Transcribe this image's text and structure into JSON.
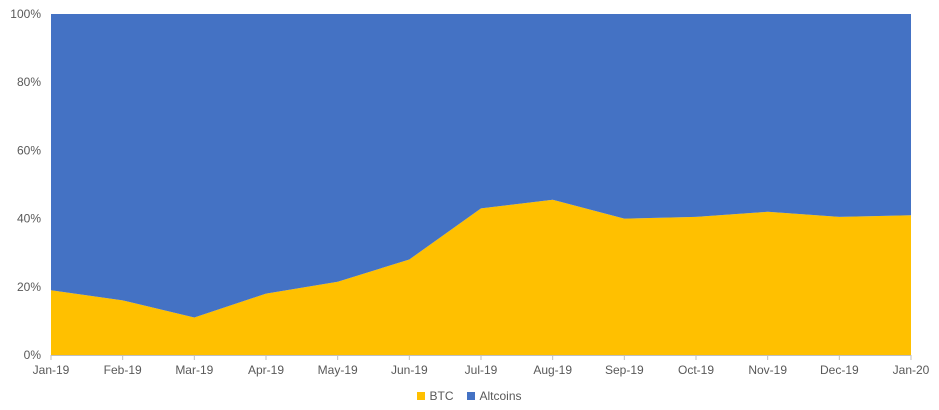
{
  "chart_data": {
    "type": "area",
    "stacked_percent": true,
    "categories": [
      "Jan-19",
      "Feb-19",
      "Mar-19",
      "Apr-19",
      "May-19",
      "Jun-19",
      "Jul-19",
      "Aug-19",
      "Sep-19",
      "Oct-19",
      "Nov-19",
      "Dec-19",
      "Jan-20"
    ],
    "series": [
      {
        "name": "BTC",
        "color": "#FFC000",
        "values": [
          19,
          16,
          11,
          18,
          21.5,
          28,
          43,
          45.5,
          40,
          40.5,
          42,
          40.5,
          41
        ]
      },
      {
        "name": "Altcoins",
        "color": "#4472C4",
        "values": [
          81,
          84,
          89,
          82,
          78.5,
          72,
          57,
          54.5,
          60,
          59.5,
          58,
          59.5,
          59
        ]
      }
    ],
    "ylim": [
      0,
      100
    ],
    "y_ticks": [
      "0%",
      "20%",
      "40%",
      "60%",
      "80%",
      "100%"
    ],
    "grid": false,
    "legend_position": "bottom"
  }
}
